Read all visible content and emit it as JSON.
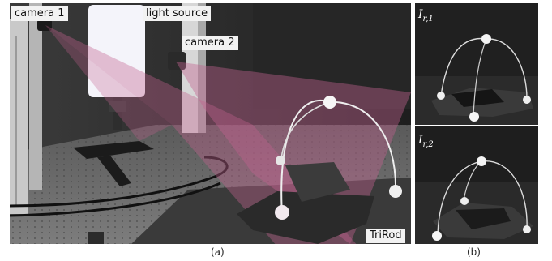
{
  "panel_a": {
    "labels": {
      "camera1": "camera 1",
      "light_source": "light source",
      "camera2": "camera 2",
      "object": "TriRod"
    },
    "caption": "(a)"
  },
  "panel_b": {
    "image1_label": {
      "base": "I",
      "sub": "r,1"
    },
    "image2_label": {
      "base": "I",
      "sub": "r,2"
    },
    "caption": "(b)"
  },
  "colors": {
    "frustum": "#c2618f",
    "background_wall": "#2a2a2a",
    "optical_table": "#6e6e6e",
    "aluminum_frame": "#cfcfcf",
    "light_panel": "#f4f4fa"
  }
}
